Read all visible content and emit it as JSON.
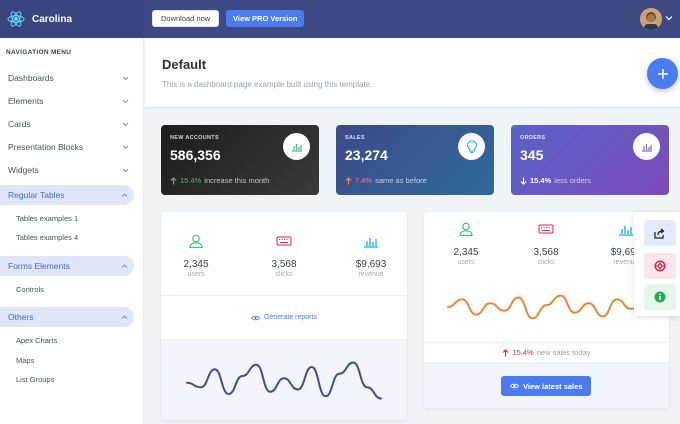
{
  "app": {
    "name": "Carolina"
  },
  "topbar": {
    "download_label": "Download now",
    "pro_label": "View PRO Version"
  },
  "sidebar": {
    "heading": "NAVIGATION MENU",
    "items": [
      {
        "label": "Dashboards"
      },
      {
        "label": "Elements"
      },
      {
        "label": "Cards"
      },
      {
        "label": "Presentation Blocks"
      },
      {
        "label": "Widgets"
      },
      {
        "label": "Regular Tables"
      },
      {
        "label": "Forms Elements"
      },
      {
        "label": "Others"
      }
    ],
    "regular_tables_sub": [
      "Tables examples 1",
      "Tables examples 4"
    ],
    "forms_sub": [
      "Controls"
    ],
    "others_sub": [
      "Apex Charts",
      "Maps",
      "List Groups"
    ]
  },
  "page": {
    "title": "Default",
    "subtitle": "This is a dashboard page example built using this template."
  },
  "stats": [
    {
      "label": "NEW ACCOUNTS",
      "value": "586,356",
      "delta": "15.4%",
      "delta_text": "increase this month",
      "delta_color": "#3ac47d",
      "icon": "bar-chart-icon"
    },
    {
      "label": "SALES",
      "value": "23,274",
      "delta": "7.4%",
      "delta_text": "same as before",
      "delta_color": "#f7806b",
      "icon": "lightbulb-icon"
    },
    {
      "label": "ORDERS",
      "value": "345",
      "delta": "15.4%",
      "delta_text": "less orders",
      "delta_color": "#ffffff",
      "icon": "bar-chart-icon"
    }
  ],
  "card_a": {
    "metrics": [
      {
        "value": "2,345",
        "caption": "users",
        "icon": "user-icon",
        "color": "#3ac47d"
      },
      {
        "value": "3,568",
        "caption": "clicks",
        "icon": "keyboard-icon",
        "color": "#d92550"
      },
      {
        "value": "$9,693",
        "caption": "revenue",
        "icon": "bar-chart-icon",
        "color": "#16aaff"
      }
    ],
    "link_label": "Generate reports",
    "sparkline": [
      0.45,
      0.35,
      0.75,
      0.2,
      0.6,
      0.85,
      0.25,
      0.55,
      0.3,
      0.8,
      0.15,
      0.65,
      0.9,
      0.35,
      0.1
    ]
  },
  "card_b": {
    "metrics": [
      {
        "value": "2,345",
        "caption": "users",
        "icon": "user-icon",
        "color": "#3ac47d"
      },
      {
        "value": "3,568",
        "caption": "clicks",
        "icon": "keyboard-icon",
        "color": "#d92550"
      },
      {
        "value": "$9,693",
        "caption": "revenue",
        "icon": "bar-chart-icon",
        "color": "#16aaff"
      }
    ],
    "note_delta": "15.4%",
    "note_text": "new sales today",
    "button_label": "View latest sales",
    "sparkline": [
      0.5,
      0.7,
      0.3,
      0.6,
      0.4,
      0.75,
      0.2,
      0.55,
      0.8,
      0.35,
      0.6,
      0.25,
      0.7,
      0.45,
      0.65
    ]
  },
  "colors": {
    "primary": "#4a7cf0",
    "success": "#3ac47d",
    "danger": "#d92550",
    "info": "#16aaff",
    "warning": "#f7b924"
  }
}
